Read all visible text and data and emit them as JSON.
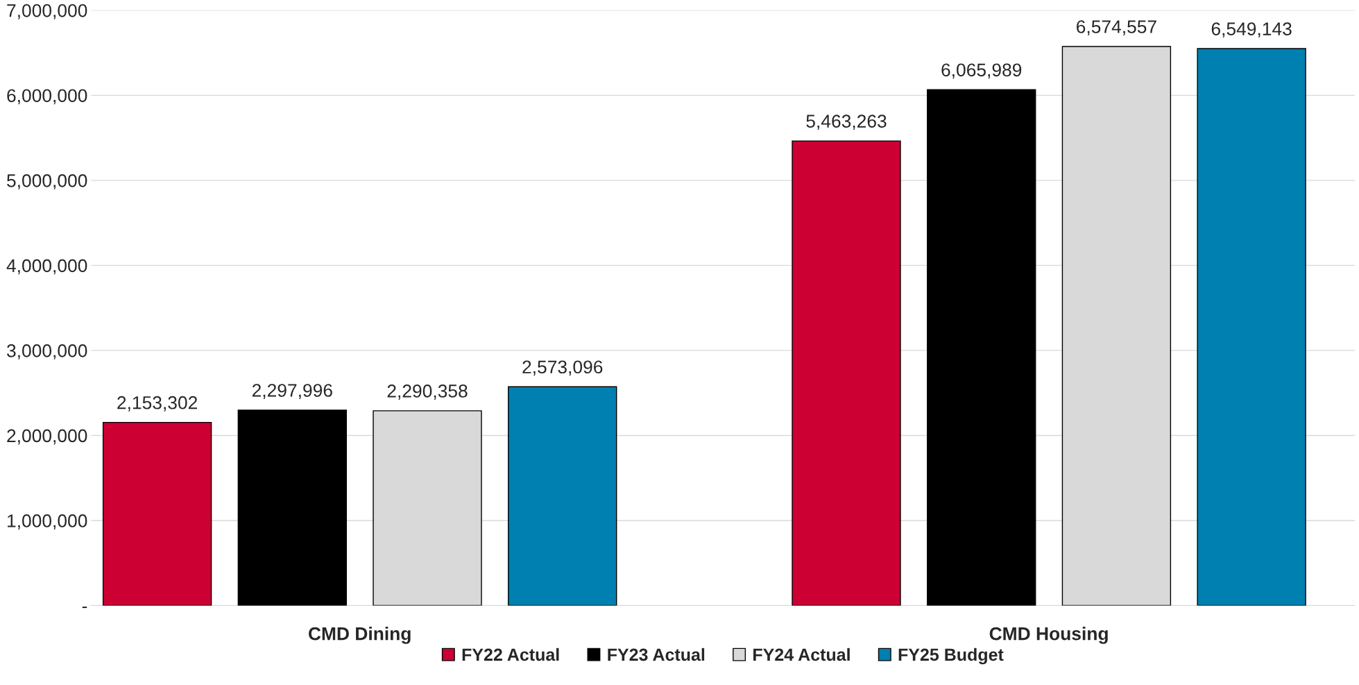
{
  "chart_data": {
    "type": "bar",
    "categories": [
      "CMD Dining",
      "CMD Housing"
    ],
    "series": [
      {
        "name": "FY22 Actual",
        "color": "#cc0033",
        "values": [
          2153302,
          5463263
        ],
        "value_labels": [
          "2,153,302",
          "5,463,263"
        ]
      },
      {
        "name": "FY23 Actual",
        "color": "#000000",
        "values": [
          2297996,
          6065989
        ],
        "value_labels": [
          "2,297,996",
          "6,065,989"
        ]
      },
      {
        "name": "FY24 Actual",
        "color": "#d9d9d9",
        "values": [
          2290358,
          6574557
        ],
        "value_labels": [
          "2,290,358",
          "6,574,557"
        ]
      },
      {
        "name": "FY25 Budget",
        "color": "#0080b0",
        "values": [
          2573096,
          6549143
        ],
        "value_labels": [
          "2,573,096",
          "6,549,143"
        ]
      }
    ],
    "ylim": [
      0,
      7000000
    ],
    "yticks": [
      {
        "value": 0,
        "label": "-"
      },
      {
        "value": 1000000,
        "label": "1,000,000"
      },
      {
        "value": 2000000,
        "label": "2,000,000"
      },
      {
        "value": 3000000,
        "label": "3,000,000"
      },
      {
        "value": 4000000,
        "label": "4,000,000"
      },
      {
        "value": 5000000,
        "label": "5,000,000"
      },
      {
        "value": 6000000,
        "label": "6,000,000"
      },
      {
        "value": 7000000,
        "label": "7,000,000"
      }
    ],
    "grid": "y",
    "legend": "bottom"
  }
}
